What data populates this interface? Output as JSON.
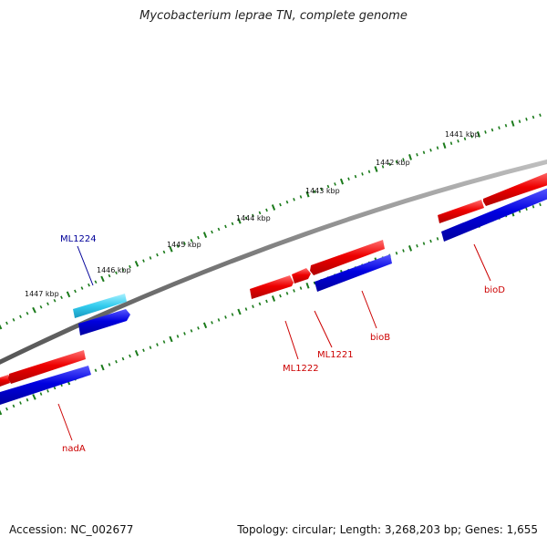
{
  "title": "Mycobacterium leprae TN, complete genome",
  "footer": {
    "accession": "Accession: NC_002677",
    "summary": "Topology: circular; Length: 3,268,203 bp; Genes: 1,655"
  },
  "ticks": [
    "1441 kbp",
    "1442 kbp",
    "1443 kbp",
    "1444 kbp",
    "1445 kbp",
    "1446 kbp",
    "1447 kbp"
  ],
  "genes": [
    {
      "name": "ML1224",
      "color": "#000099"
    },
    {
      "name": "bioD",
      "color": "#cc0000"
    },
    {
      "name": "bioB",
      "color": "#cc0000"
    },
    {
      "name": "ML1221",
      "color": "#cc0000"
    },
    {
      "name": "ML1222",
      "color": "#cc0000"
    },
    {
      "name": "nadA",
      "color": "#cc0000"
    }
  ],
  "colors": {
    "backbone": "#888888",
    "forward_feature": "#e00000",
    "reverse_feature": "#0000dd",
    "highlight_feature": "#33ccee",
    "dotted_ring": "#1a7a1a",
    "label_red": "#cc0000",
    "label_blue": "#000099"
  }
}
